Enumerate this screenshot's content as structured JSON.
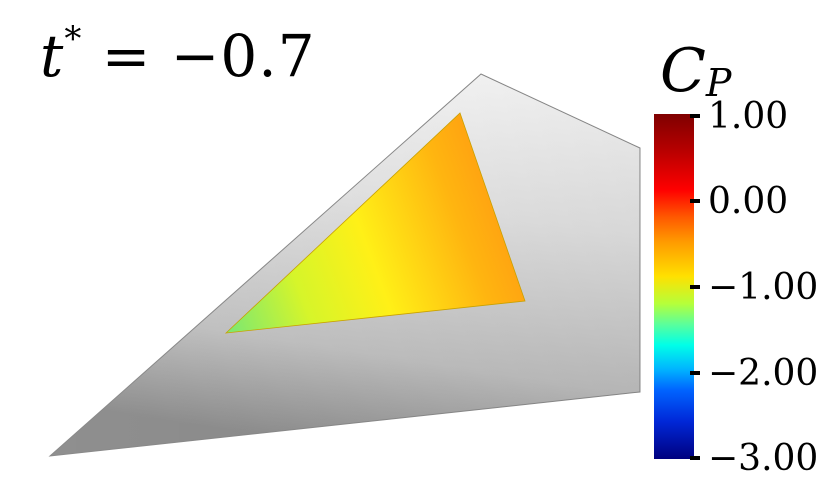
{
  "annotation": {
    "variable": "t",
    "superscript": "*",
    "value": "= −0.7"
  },
  "colorbar": {
    "title": "C",
    "title_subscript": "P",
    "ticks": [
      "1.00",
      "0.00",
      "−1.00",
      "−2.00",
      "−3.00"
    ],
    "colors": [
      "#7f0000",
      "#ff0000",
      "#ff9a00",
      "#ffe000",
      "#5aff9c",
      "#00ffe8",
      "#0064ff",
      "#00007f"
    ]
  }
}
